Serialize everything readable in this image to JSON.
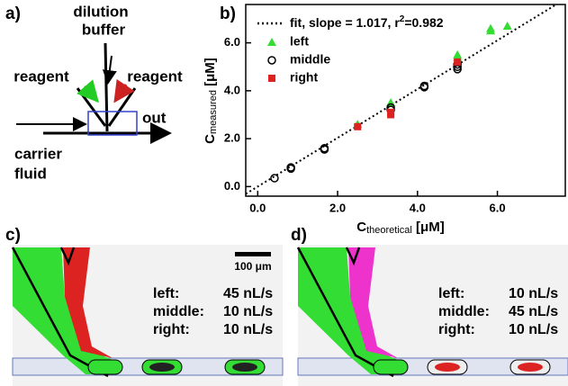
{
  "panel_a": {
    "label": "a)",
    "dilution": "dilution",
    "buffer": "buffer",
    "reagent_left": "reagent",
    "reagent_right": "reagent",
    "out": "out",
    "carrier": "carrier",
    "fluid": "fluid"
  },
  "chart_data": {
    "type": "scatter",
    "label": "b)",
    "xlabel": {
      "main": "C",
      "sub": "theoretical",
      "unit": " [μM]"
    },
    "ylabel": {
      "main": "C",
      "sub": "measured",
      "unit": " [μM]"
    },
    "xlim": [
      -0.3,
      7.7
    ],
    "ylim": [
      -0.4,
      7.6
    ],
    "xticks": [
      {
        "value": 0,
        "label": "0.0"
      },
      {
        "value": 2,
        "label": "2.0"
      },
      {
        "value": 4,
        "label": "4.0"
      },
      {
        "value": 6,
        "label": "6.0"
      }
    ],
    "yticks": [
      {
        "value": 0,
        "label": "0.0"
      },
      {
        "value": 2,
        "label": "2.0"
      },
      {
        "value": 4,
        "label": "4.0"
      },
      {
        "value": 6,
        "label": "6.0"
      }
    ],
    "fit": {
      "text": "fit, slope = 1.017, r",
      "sup": "2",
      "tail": "=0.982",
      "slope": 1.017,
      "color": "#000000"
    },
    "series": [
      {
        "name": "left",
        "marker": "triangle",
        "color": "#33dd33",
        "x": [
          2.5,
          3.33,
          5,
          5,
          5.83,
          5.83,
          6.25
        ],
        "values": [
          2.6,
          3.5,
          5.4,
          5.5,
          6.5,
          6.6,
          6.7
        ]
      },
      {
        "name": "middle",
        "marker": "circle",
        "color": "#000000",
        "x": [
          0.42,
          0.83,
          0.83,
          1.67,
          1.67,
          3.33,
          3.33,
          4.17,
          4.17,
          5,
          5,
          5
        ],
        "values": [
          0.35,
          0.8,
          0.75,
          1.6,
          1.55,
          3.2,
          3.3,
          4.2,
          4.15,
          5.0,
          4.9,
          5.1
        ]
      },
      {
        "name": "right",
        "marker": "square",
        "color": "#dd2222",
        "x": [
          2.5,
          3.33,
          3.33,
          5
        ],
        "values": [
          2.5,
          3.0,
          3.1,
          5.2
        ]
      }
    ]
  },
  "panel_c": {
    "label": "c)",
    "scale": "100 μm",
    "rows": [
      [
        "left:",
        "45 nL/s"
      ],
      [
        "middle:",
        "10 nL/s"
      ],
      [
        "right:",
        "10 nL/s"
      ]
    ]
  },
  "panel_d": {
    "label": "d)",
    "rows": [
      [
        "left:",
        "10 nL/s"
      ],
      [
        "middle:",
        "45 nL/s"
      ],
      [
        "right:",
        "10 nL/s"
      ]
    ]
  }
}
